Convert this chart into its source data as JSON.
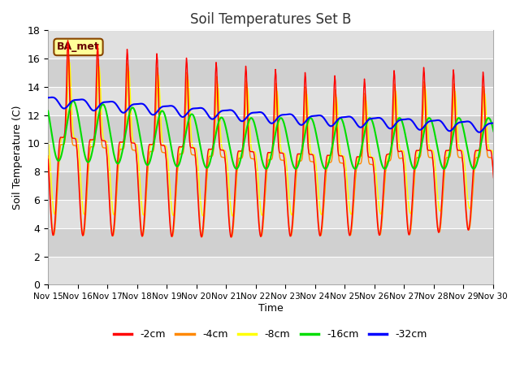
{
  "title": "Soil Temperatures Set B",
  "xlabel": "Time",
  "ylabel": "Soil Temperature (C)",
  "ylim": [
    0,
    18
  ],
  "yticks": [
    0,
    2,
    4,
    6,
    8,
    10,
    12,
    14,
    16,
    18
  ],
  "x_tick_labels": [
    "Nov 15",
    "Nov 16",
    "Nov 17",
    "Nov 18",
    "Nov 19",
    "Nov 20",
    "Nov 21",
    "Nov 22",
    "Nov 23",
    "Nov 24",
    "Nov 25",
    "Nov 26",
    "Nov 27",
    "Nov 28",
    "Nov 29",
    "Nov 30"
  ],
  "legend_labels": [
    "-2cm",
    "-4cm",
    "-8cm",
    "-16cm",
    "-32cm"
  ],
  "line_colors": [
    "#ff0000",
    "#ff8800",
    "#ffff00",
    "#00dd00",
    "#0000ff"
  ],
  "line_widths": [
    1.0,
    1.0,
    1.0,
    1.5,
    1.5
  ],
  "background_color": "#ffffff",
  "plot_bg_color": "#d8d8d8",
  "grid_color": "#bbbbbb",
  "annotation_text": "BA_met",
  "annotation_bg": "#ffff99",
  "annotation_border": "#884400"
}
